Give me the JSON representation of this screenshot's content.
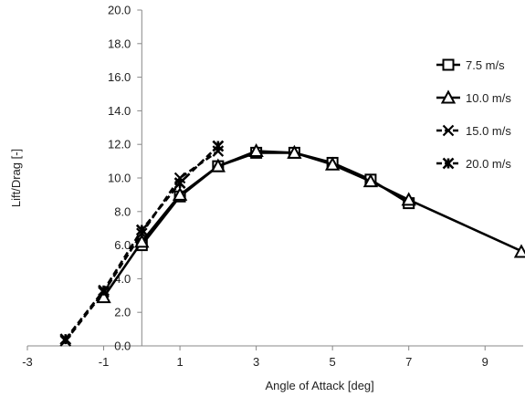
{
  "chart_data": {
    "type": "line",
    "title": "",
    "xlabel": "Angle of Attack [deg]",
    "ylabel": "Lift/Drag [-]",
    "xlim": [
      -3,
      10
    ],
    "ylim": [
      0,
      20
    ],
    "xticks": [
      -3,
      -1,
      1,
      3,
      5,
      7,
      9
    ],
    "xtick_labels": [
      "-3",
      "-1",
      "1",
      "3",
      "5",
      "7",
      "9"
    ],
    "yticks": [
      0,
      2,
      4,
      6,
      8,
      10,
      12,
      14,
      16,
      18,
      20
    ],
    "ytick_labels": [
      "0.0",
      "2.0",
      "4.0",
      "6.0",
      "8.0",
      "10.0",
      "12.0",
      "14.0",
      "16.0",
      "18.0",
      "20.0"
    ],
    "grid": false,
    "legend_position": "right",
    "series": [
      {
        "name": "7.5 m/s",
        "marker": "square",
        "line_style": "solid",
        "color": "#000000",
        "x": [
          0,
          1,
          2,
          3,
          4,
          5,
          6,
          7
        ],
        "y": [
          6.0,
          8.9,
          10.7,
          11.5,
          11.5,
          10.9,
          9.9,
          8.5
        ]
      },
      {
        "name": "10.0 m/s",
        "marker": "triangle",
        "line_style": "solid",
        "color": "#000000",
        "x": [
          -1,
          0,
          1,
          2,
          3,
          4,
          5,
          6,
          7,
          10
        ],
        "y": [
          2.9,
          6.2,
          9.0,
          10.7,
          11.6,
          11.5,
          10.8,
          9.8,
          8.7,
          5.6
        ]
      },
      {
        "name": "15.0 m/s",
        "marker": "x",
        "line_style": "dashed",
        "color": "#000000",
        "x": [
          -2,
          -1,
          0,
          1,
          2
        ],
        "y": [
          0.3,
          3.2,
          6.7,
          10.0,
          11.6
        ]
      },
      {
        "name": "20.0 m/s",
        "marker": "star",
        "line_style": "dashed",
        "color": "#000000",
        "x": [
          -2,
          -1,
          0,
          1,
          2
        ],
        "y": [
          0.4,
          3.3,
          6.9,
          9.7,
          11.9
        ]
      }
    ]
  }
}
